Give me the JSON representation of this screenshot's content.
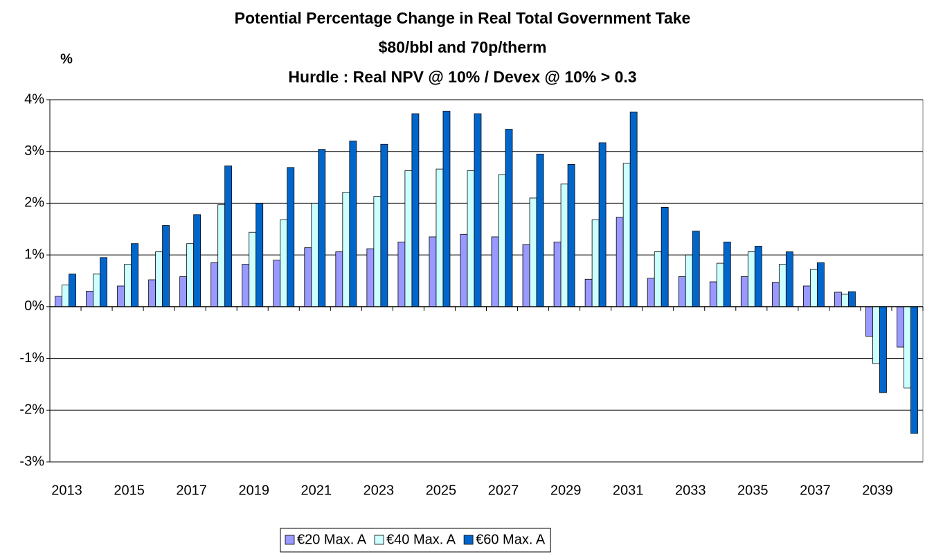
{
  "chart_data": {
    "type": "bar",
    "title": [
      "Potential Percentage Change in Real Total Government Take",
      "$80/bbl and 70p/therm",
      "Hurdle : Real NPV @ 10% /  Devex @ 10% > 0.3"
    ],
    "ylabel": "%",
    "categories": [
      "2013",
      null,
      "2015",
      null,
      "2017",
      null,
      "2019",
      null,
      "2021",
      null,
      "2023",
      null,
      "2025",
      null,
      "2027",
      null,
      "2029",
      null,
      "2031",
      null,
      "2033",
      null,
      "2035",
      null,
      "2037",
      null,
      "2039",
      null
    ],
    "series": [
      {
        "name": "€20 Max. A",
        "color": "#9999ff",
        "values": [
          0.2,
          0.3,
          0.4,
          0.52,
          0.58,
          0.85,
          0.82,
          0.9,
          1.14,
          1.06,
          1.12,
          1.25,
          1.35,
          1.4,
          1.35,
          1.2,
          1.25,
          0.53,
          1.73,
          0.55,
          0.58,
          0.48,
          0.58,
          0.47,
          0.4,
          0.28,
          -0.57,
          -0.78
        ]
      },
      {
        "name": "€40 Max. A",
        "color": "#ccffff",
        "values": [
          0.42,
          0.63,
          0.82,
          1.06,
          1.22,
          1.97,
          1.44,
          1.68,
          2.0,
          2.21,
          2.13,
          2.63,
          2.66,
          2.63,
          2.55,
          2.1,
          2.37,
          1.68,
          2.77,
          1.06,
          1.0,
          0.84,
          1.06,
          0.82,
          0.72,
          0.24,
          -1.1,
          -1.57
        ]
      },
      {
        "name": "€60 Max. A",
        "color": "#0066cc",
        "values": [
          0.63,
          0.95,
          1.22,
          1.57,
          1.78,
          2.72,
          2.0,
          2.69,
          3.04,
          3.2,
          3.14,
          3.73,
          3.78,
          3.73,
          3.43,
          2.95,
          2.75,
          3.17,
          3.76,
          1.92,
          1.46,
          1.25,
          1.17,
          1.06,
          0.85,
          0.29,
          -1.66,
          -2.45
        ]
      }
    ],
    "ylim": [
      -3,
      4
    ],
    "yticks": [
      {
        "value": -3,
        "label": "-3%"
      },
      {
        "value": -2,
        "label": "-2%"
      },
      {
        "value": -1,
        "label": "-1%"
      },
      {
        "value": 0,
        "label": "0%"
      },
      {
        "value": 1,
        "label": "1%"
      },
      {
        "value": 2,
        "label": "2%"
      },
      {
        "value": 3,
        "label": "3%"
      },
      {
        "value": 4,
        "label": "4%"
      }
    ],
    "grid": true,
    "legend": "bottom"
  }
}
